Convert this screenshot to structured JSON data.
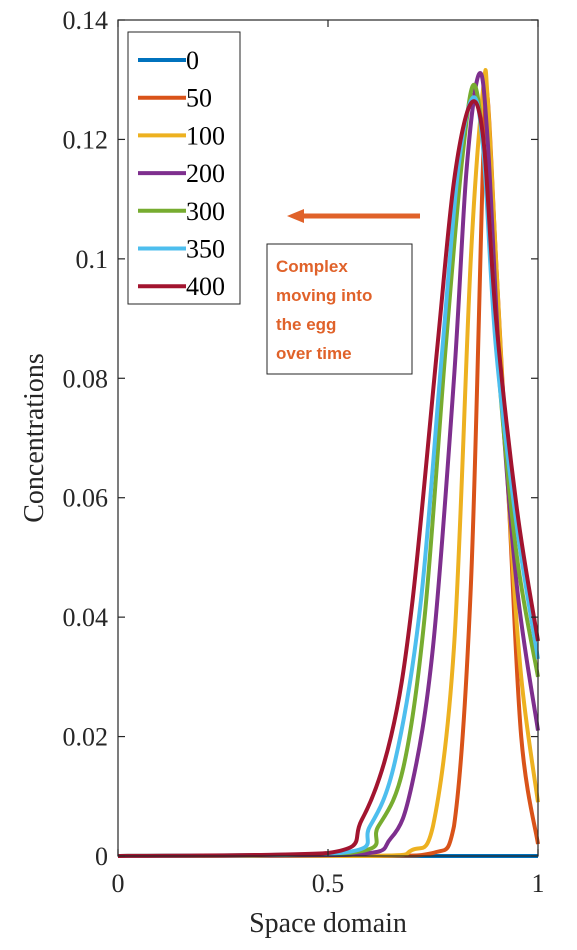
{
  "chart_data": {
    "type": "line",
    "title": "",
    "xlabel": "Space domain",
    "ylabel": "Concentrations",
    "xlim": [
      0,
      1
    ],
    "ylim": [
      0,
      0.14
    ],
    "xticks": [
      0,
      0.5,
      1
    ],
    "xtick_labels": [
      "0",
      "0.5",
      "1"
    ],
    "yticks": [
      0,
      0.02,
      0.04,
      0.06,
      0.08,
      0.1,
      0.12,
      0.14
    ],
    "ytick_labels": [
      "0",
      "0.02",
      "0.04",
      "0.06",
      "0.08",
      "0.1",
      "0.12",
      "0.14"
    ],
    "grid": false,
    "legend_position": "top-left",
    "series": [
      {
        "name": "0",
        "color": "#0072BD",
        "x": [
          0,
          0.5,
          1
        ],
        "y": [
          0,
          0,
          0
        ]
      },
      {
        "name": "50",
        "color": "#D95319",
        "x": [
          0,
          0.6,
          0.75,
          0.8,
          0.84,
          0.87,
          0.88,
          0.9,
          0.93,
          0.96,
          1
        ],
        "y": [
          0,
          0,
          0.0005,
          0.005,
          0.045,
          0.118,
          0.127,
          0.1,
          0.06,
          0.02,
          0.002
        ]
      },
      {
        "name": "100",
        "color": "#EDB120",
        "x": [
          0,
          0.6,
          0.7,
          0.75,
          0.8,
          0.84,
          0.87,
          0.88,
          0.9,
          0.93,
          0.96,
          1
        ],
        "y": [
          0,
          0,
          0.001,
          0.005,
          0.035,
          0.1,
          0.129,
          0.127,
          0.1,
          0.06,
          0.03,
          0.009
        ]
      },
      {
        "name": "200",
        "color": "#7E2F8E",
        "x": [
          0,
          0.55,
          0.65,
          0.7,
          0.75,
          0.8,
          0.83,
          0.86,
          0.88,
          0.91,
          0.95,
          1
        ],
        "y": [
          0,
          0.0002,
          0.003,
          0.012,
          0.035,
          0.08,
          0.115,
          0.131,
          0.12,
          0.08,
          0.045,
          0.021
        ]
      },
      {
        "name": "300",
        "color": "#77AC30",
        "x": [
          0,
          0.55,
          0.62,
          0.68,
          0.73,
          0.78,
          0.82,
          0.85,
          0.88,
          0.91,
          0.95,
          1
        ],
        "y": [
          0,
          0.0005,
          0.005,
          0.015,
          0.04,
          0.085,
          0.117,
          0.129,
          0.11,
          0.078,
          0.05,
          0.03
        ]
      },
      {
        "name": "350",
        "color": "#4DBEEE",
        "x": [
          0,
          0.53,
          0.6,
          0.66,
          0.72,
          0.77,
          0.81,
          0.845,
          0.87,
          0.9,
          0.95,
          1
        ],
        "y": [
          0,
          0.0005,
          0.005,
          0.016,
          0.042,
          0.083,
          0.115,
          0.127,
          0.118,
          0.085,
          0.055,
          0.033
        ]
      },
      {
        "name": "400",
        "color": "#A2142F",
        "x": [
          0,
          0.5,
          0.58,
          0.65,
          0.7,
          0.76,
          0.8,
          0.84,
          0.87,
          0.9,
          0.95,
          1
        ],
        "y": [
          0,
          0.0005,
          0.006,
          0.02,
          0.042,
          0.085,
          0.113,
          0.126,
          0.12,
          0.09,
          0.058,
          0.036
        ]
      }
    ],
    "annotation": {
      "text_lines": [
        "Complex",
        "moving into",
        "the egg",
        "over time"
      ],
      "color": "#E0622A",
      "arrow_direction": "left"
    }
  }
}
